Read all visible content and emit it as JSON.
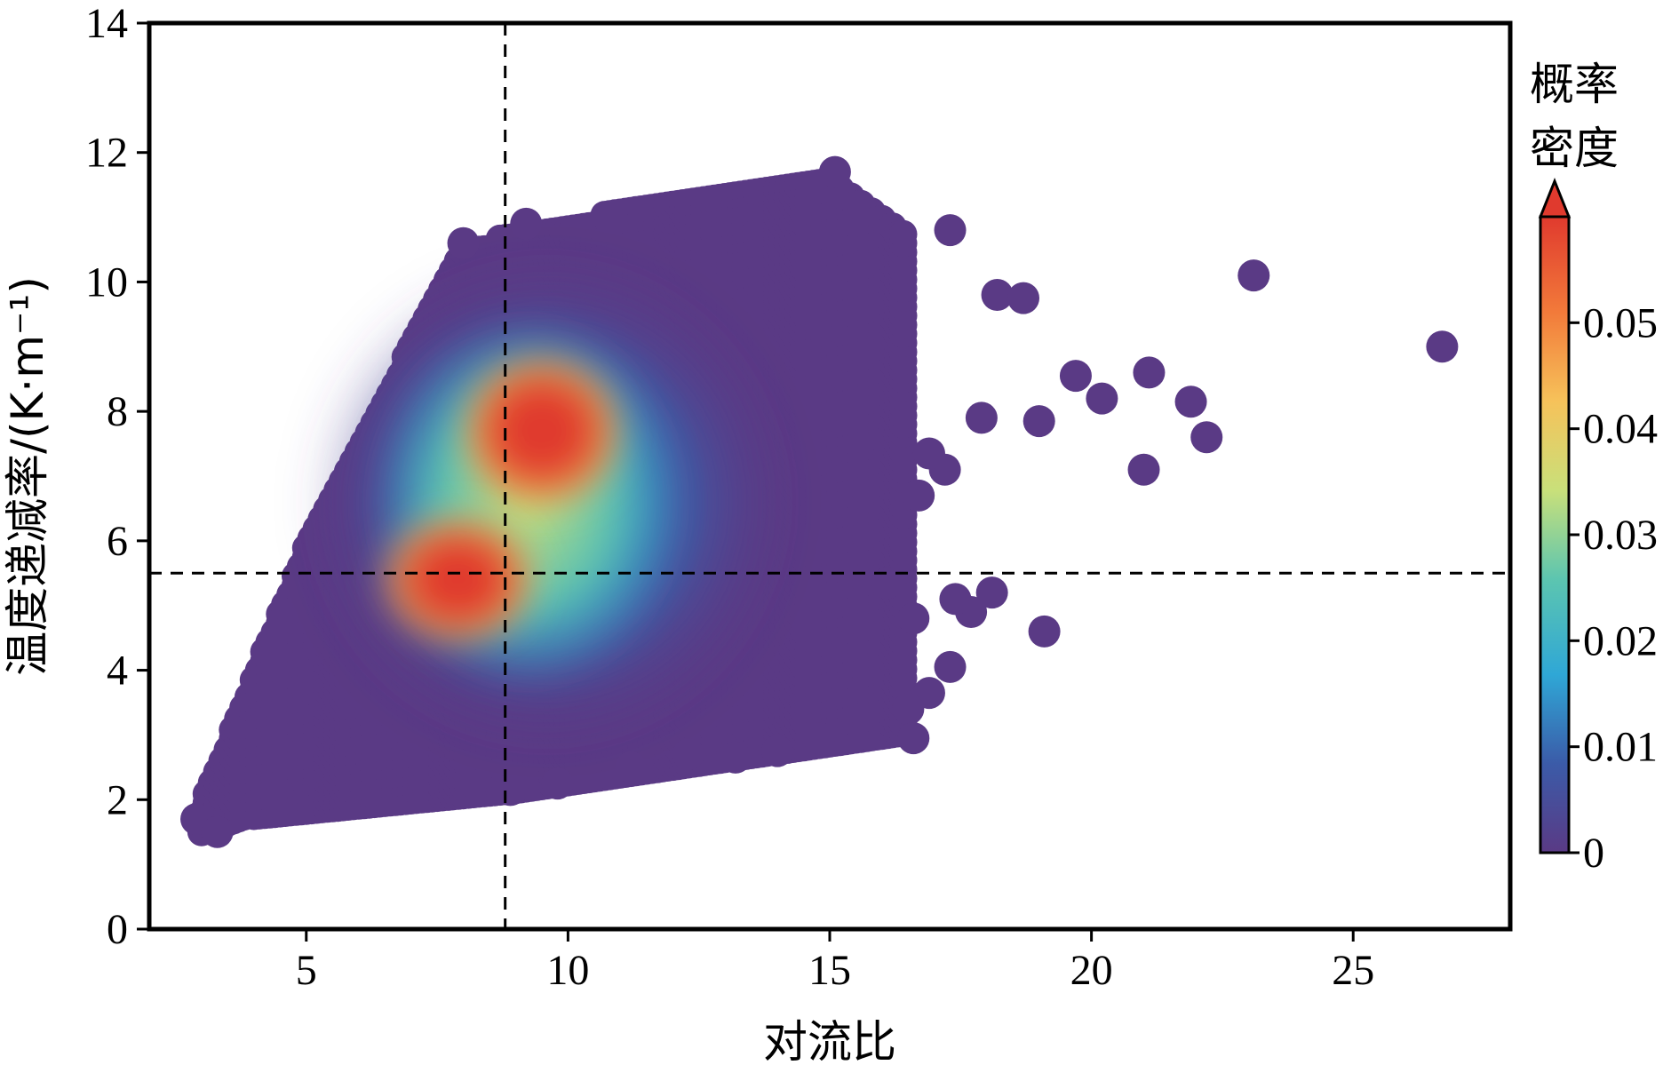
{
  "chart_data": {
    "type": "scatter",
    "title": "",
    "xlabel": "对流比",
    "ylabel": "温度递减率/(K·m⁻¹)",
    "xlim": [
      2,
      28
    ],
    "ylim": [
      0,
      14
    ],
    "x_ticks": [
      5,
      10,
      15,
      20,
      25
    ],
    "y_ticks": [
      0,
      2,
      4,
      6,
      8,
      10,
      12,
      14
    ],
    "x_tick_labels": [
      "5",
      "10",
      "15",
      "20",
      "25"
    ],
    "y_tick_labels": [
      "0",
      "2",
      "4",
      "6",
      "8",
      "10",
      "12",
      "14"
    ],
    "reference_lines": {
      "vertical_x": 8.8,
      "horizontal_y": 5.5
    },
    "colorbar": {
      "label_line1": "概率",
      "label_line2": "密度",
      "range": [
        0,
        0.06
      ],
      "ticks": [
        0,
        0.01,
        0.02,
        0.03,
        0.04,
        0.05
      ],
      "tick_labels": [
        "0",
        "0.01",
        "0.02",
        "0.03",
        "0.04",
        "0.05"
      ],
      "extend": "max",
      "colors": [
        "#5a3a85",
        "#3b5ba8",
        "#2fa7d6",
        "#5cc5b0",
        "#c9e07a",
        "#f6c25a",
        "#f27a3a",
        "#e03a2e"
      ]
    },
    "density_peaks": [
      {
        "x": 9.5,
        "y": 7.8,
        "density": 0.058
      },
      {
        "x": 7.8,
        "y": 5.4,
        "density": 0.055
      }
    ],
    "density_mass": {
      "x_range": [
        3.0,
        17.0
      ],
      "y_range_at_x3": [
        1.6,
        2.2
      ],
      "y_range_at_x15": [
        2.8,
        11.7
      ]
    },
    "outliers": [
      {
        "x": 2.9,
        "y": 1.7
      },
      {
        "x": 3.3,
        "y": 1.5
      },
      {
        "x": 15.1,
        "y": 11.7
      },
      {
        "x": 17.3,
        "y": 10.8
      },
      {
        "x": 18.2,
        "y": 9.8
      },
      {
        "x": 18.7,
        "y": 9.75
      },
      {
        "x": 17.9,
        "y": 7.9
      },
      {
        "x": 19.0,
        "y": 7.85
      },
      {
        "x": 19.7,
        "y": 8.55
      },
      {
        "x": 20.2,
        "y": 8.2
      },
      {
        "x": 21.1,
        "y": 8.6
      },
      {
        "x": 21.9,
        "y": 8.15
      },
      {
        "x": 22.2,
        "y": 7.6
      },
      {
        "x": 21.0,
        "y": 7.1
      },
      {
        "x": 23.1,
        "y": 10.1
      },
      {
        "x": 26.7,
        "y": 9.0
      },
      {
        "x": 19.1,
        "y": 4.6
      },
      {
        "x": 18.1,
        "y": 5.2
      },
      {
        "x": 17.7,
        "y": 4.9
      },
      {
        "x": 17.4,
        "y": 5.1
      },
      {
        "x": 16.6,
        "y": 4.8
      },
      {
        "x": 17.3,
        "y": 4.05
      },
      {
        "x": 16.9,
        "y": 3.65
      },
      {
        "x": 16.5,
        "y": 3.4
      },
      {
        "x": 16.6,
        "y": 2.95
      },
      {
        "x": 16.7,
        "y": 6.7
      },
      {
        "x": 17.2,
        "y": 7.1
      },
      {
        "x": 16.9,
        "y": 7.35
      },
      {
        "x": 16.1,
        "y": 5.35
      },
      {
        "x": 14.8,
        "y": 2.95
      },
      {
        "x": 14.0,
        "y": 2.75
      },
      {
        "x": 13.2,
        "y": 2.65
      },
      {
        "x": 12.3,
        "y": 2.7
      },
      {
        "x": 11.2,
        "y": 2.5
      },
      {
        "x": 9.8,
        "y": 2.25
      },
      {
        "x": 8.9,
        "y": 2.15
      },
      {
        "x": 9.2,
        "y": 10.9
      },
      {
        "x": 8.0,
        "y": 10.6
      }
    ]
  }
}
